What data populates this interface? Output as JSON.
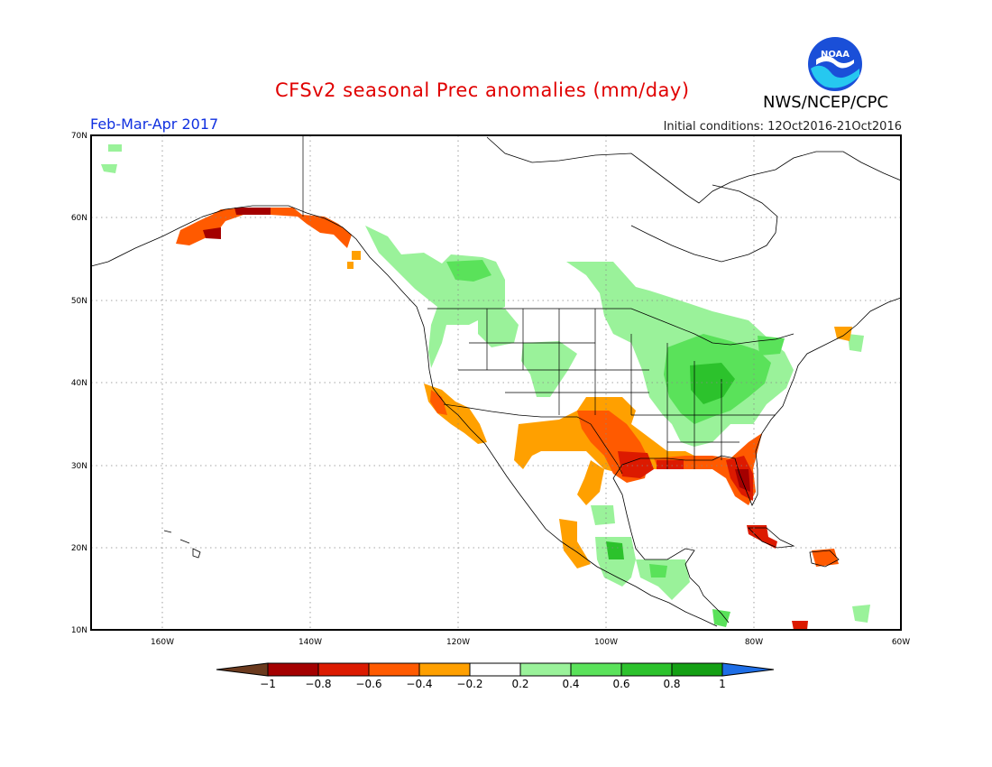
{
  "title": "CFSv2 seasonal Prec anomalies (mm/day)",
  "agency": "NWS/NCEP/CPC",
  "logo_text": "NOAA",
  "period": "Feb-Mar-Apr 2017",
  "initial_conditions": "Initial conditions: 12Oct2016-21Oct2016",
  "lat_labels": [
    "70N",
    "60N",
    "50N",
    "40N",
    "30N",
    "20N",
    "10N"
  ],
  "lon_labels": [
    "160W",
    "140W",
    "120W",
    "100W",
    "80W",
    "60W"
  ],
  "colorbar": {
    "colors": [
      "#6b3a1e",
      "#a40000",
      "#dc1a00",
      "#ff5a00",
      "#ffa000",
      "#ffffff",
      "#9af29a",
      "#5ae25a",
      "#2cc22c",
      "#14a014",
      "#1e6ee6"
    ],
    "tick_labels": [
      "-1",
      "-0.8",
      "-0.6",
      "-0.4",
      "-0.2",
      "0.2",
      "0.4",
      "0.6",
      "0.8",
      "1"
    ]
  },
  "regions": [
    {
      "name": "great-lakes-ohio-valley",
      "category": "0.4",
      "color": "#5ae25a"
    },
    {
      "name": "gulf-coast-florida",
      "category": "-0.6",
      "color": "#dc1a00"
    },
    {
      "name": "southwest-texas",
      "category": "-0.4",
      "color": "#ffa000"
    },
    {
      "name": "pacific-northwest",
      "category": "0.2",
      "color": "#9af29a"
    },
    {
      "name": "southern-california-baja",
      "category": "-0.4",
      "color": "#ffa000"
    },
    {
      "name": "southern-alaska-coast",
      "category": "-0.6",
      "color": "#dc1a00"
    }
  ]
}
